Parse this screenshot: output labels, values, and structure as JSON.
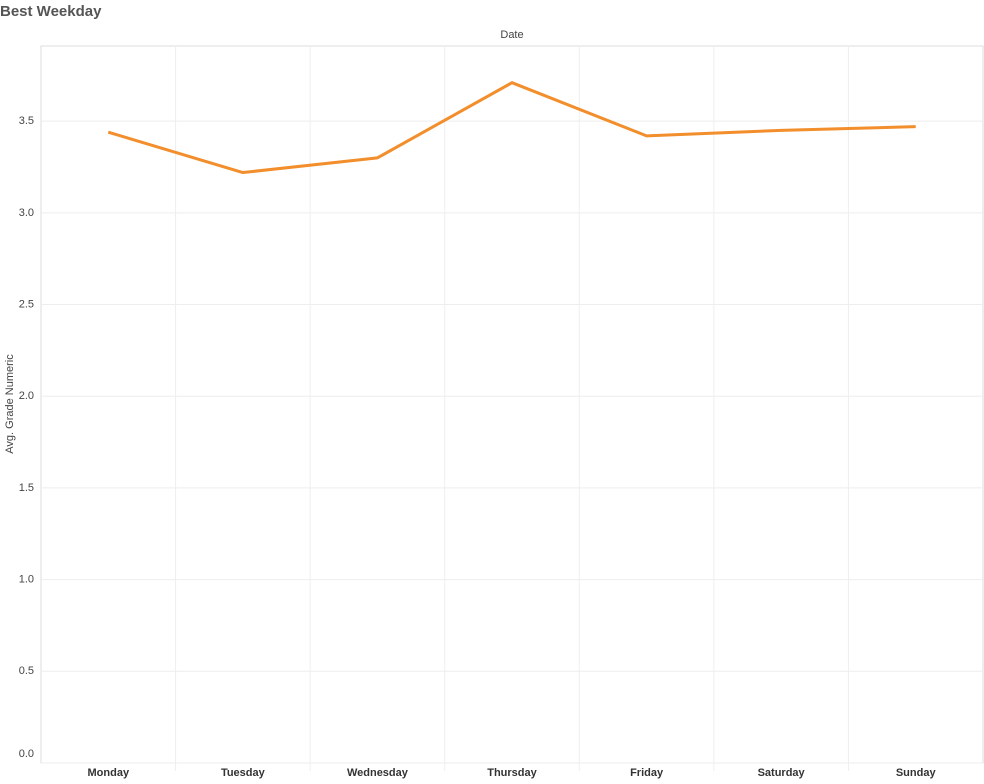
{
  "chart_data": {
    "type": "line",
    "title": "Best Weekday",
    "x_label": "Date",
    "y_label": "Avg. Grade Numeric",
    "categories": [
      "Monday",
      "Tuesday",
      "Wednesday",
      "Thursday",
      "Friday",
      "Saturday",
      "Sunday"
    ],
    "series": [
      {
        "name": "Avg. Grade Numeric",
        "color": "#f28e2b",
        "values": [
          3.44,
          3.22,
          3.3,
          3.71,
          3.42,
          3.45,
          3.47
        ]
      }
    ],
    "ylim": [
      0,
      3.91
    ],
    "yticks": [
      {
        "value": 0,
        "label": "0.0"
      },
      {
        "value": 0.5,
        "label": "0.5"
      },
      {
        "value": 1,
        "label": "1.0"
      },
      {
        "value": 1.5,
        "label": "1.5"
      },
      {
        "value": 2,
        "label": "2.0"
      },
      {
        "value": 2.5,
        "label": "2.5"
      },
      {
        "value": 3,
        "label": "3.0"
      },
      {
        "value": 3.5,
        "label": "3.5"
      }
    ],
    "grid": true
  }
}
